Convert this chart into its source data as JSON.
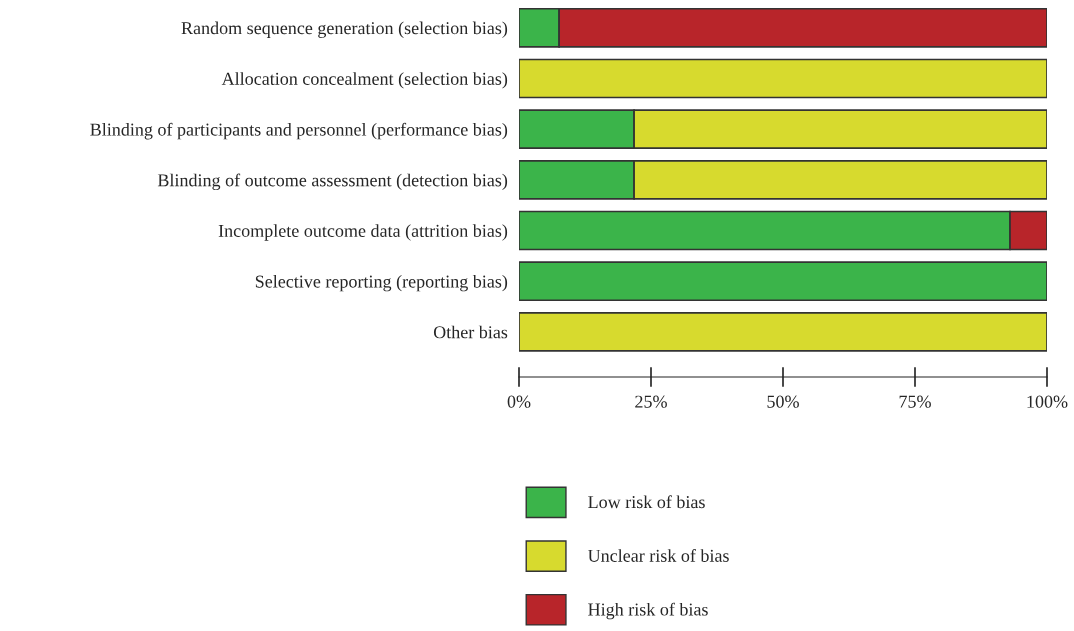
{
  "chart_data": {
    "type": "bar",
    "orientation": "horizontal",
    "stacked": true,
    "categories": [
      "Random sequence generation (selection bias)",
      "Allocation concealment (selection bias)",
      "Blinding of participants and personnel (performance bias)",
      "Blinding of outcome assessment (detection bias)",
      "Incomplete outcome data (attrition bias)",
      "Selective reporting (reporting bias)",
      "Other bias"
    ],
    "series": [
      {
        "name": "Low risk of bias",
        "color": "#3bb44a",
        "values": [
          7.6,
          0,
          21.8,
          21.8,
          93,
          100,
          0
        ]
      },
      {
        "name": "Unclear risk of bias",
        "color": "#d7da2e",
        "values": [
          0,
          100,
          78.2,
          78.2,
          0,
          0,
          100
        ]
      },
      {
        "name": "High risk of bias",
        "color": "#b8252a",
        "values": [
          92.4,
          0,
          0,
          0,
          7,
          0,
          0
        ]
      }
    ],
    "xlim": [
      0,
      100
    ],
    "xticks": [
      {
        "value": 0,
        "label": "0%"
      },
      {
        "value": 25,
        "label": "25%"
      },
      {
        "value": 50,
        "label": "50%"
      },
      {
        "value": 75,
        "label": "75%"
      },
      {
        "value": 100,
        "label": "100%"
      }
    ],
    "grid": false,
    "legend": "bottom"
  }
}
